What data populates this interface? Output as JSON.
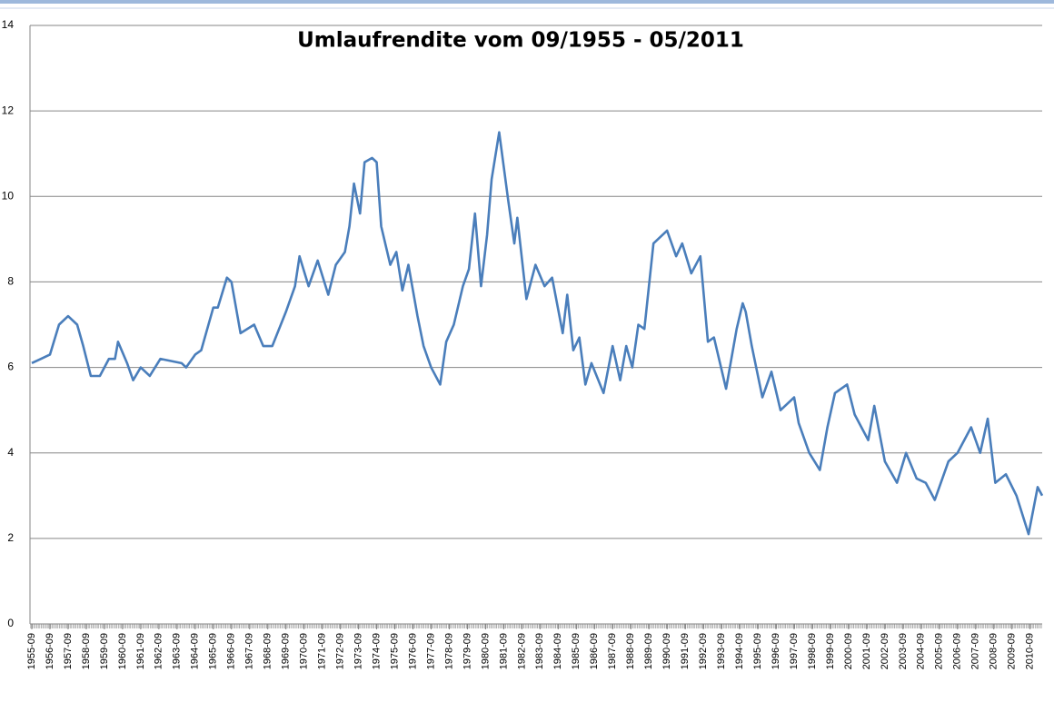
{
  "chart_data": {
    "type": "line",
    "title": "Umlaufrendite vom 09/1955 - 05/2011",
    "color": "#4a7ebb",
    "grid": true,
    "xlim": [
      "1955-09",
      "2011-05"
    ],
    "xticks": [
      "1955-09",
      "1956-09",
      "1957-09",
      "1958-09",
      "1959-09",
      "1960-09",
      "1961-09",
      "1962-09",
      "1963-09",
      "1964-09",
      "1965-09",
      "1966-09",
      "1967-09",
      "1968-09",
      "1969-09",
      "1970-09",
      "1971-09",
      "1972-09",
      "1973-09",
      "1974-09",
      "1975-09",
      "1976-09",
      "1977-09",
      "1978-09",
      "1979-09",
      "1980-09",
      "1981-09",
      "1982-09",
      "1983-09",
      "1984-09",
      "1985-09",
      "1986-09",
      "1987-09",
      "1988-09",
      "1989-09",
      "1990-09",
      "1991-09",
      "1992-09",
      "1993-09",
      "1994-09",
      "1995-09",
      "1996-09",
      "1997-09",
      "1998-09",
      "1999-09",
      "2000-09",
      "2001-09",
      "2002-09",
      "2003-09",
      "2004-09",
      "2005-09",
      "2006-09",
      "2007-09",
      "2008-09",
      "2009-09",
      "2010-09"
    ],
    "ylim": [
      0,
      14
    ],
    "yticks": [
      0,
      2,
      4,
      6,
      8,
      10,
      12,
      14
    ],
    "x": [
      "1955-09",
      "1956-03",
      "1956-09",
      "1957-03",
      "1957-09",
      "1958-03",
      "1958-07",
      "1958-12",
      "1959-06",
      "1959-12",
      "1960-04",
      "1960-06",
      "1960-12",
      "1961-04",
      "1961-09",
      "1962-03",
      "1962-10",
      "1963-12",
      "1964-03",
      "1964-09",
      "1965-01",
      "1965-09",
      "1965-12",
      "1966-06",
      "1966-09",
      "1966-12",
      "1967-03",
      "1967-12",
      "1968-06",
      "1968-12",
      "1969-09",
      "1970-03",
      "1970-06",
      "1970-12",
      "1971-06",
      "1972-01",
      "1972-06",
      "1972-12",
      "1973-03",
      "1973-06",
      "1973-10",
      "1974-01",
      "1974-06",
      "1974-09",
      "1974-12",
      "1975-06",
      "1975-10",
      "1976-02",
      "1976-06",
      "1976-12",
      "1977-04",
      "1977-09",
      "1978-03",
      "1978-07",
      "1978-12",
      "1979-06",
      "1979-10",
      "1980-02",
      "1980-06",
      "1980-10",
      "1981-01",
      "1981-06",
      "1981-12",
      "1982-04",
      "1982-06",
      "1982-12",
      "1983-06",
      "1983-12",
      "1984-05",
      "1984-12",
      "1985-03",
      "1985-07",
      "1985-11",
      "1986-03",
      "1986-07",
      "1987-03",
      "1987-09",
      "1988-02",
      "1988-06",
      "1988-10",
      "1989-02",
      "1989-06",
      "1989-12",
      "1990-09",
      "1991-03",
      "1991-07",
      "1992-01",
      "1992-07",
      "1992-12",
      "1993-04",
      "1993-12",
      "1994-07",
      "1994-11",
      "1995-01",
      "1995-05",
      "1995-12",
      "1996-06",
      "1996-12",
      "1997-09",
      "1997-12",
      "1998-07",
      "1999-02",
      "1999-07",
      "1999-12",
      "2000-08",
      "2001-01",
      "2001-10",
      "2002-02",
      "2002-09",
      "2003-05",
      "2003-11",
      "2004-06",
      "2004-12",
      "2005-06",
      "2006-03",
      "2006-09",
      "2007-06",
      "2007-12",
      "2008-05",
      "2008-10",
      "2009-05",
      "2009-12",
      "2010-08",
      "2011-02",
      "2011-05"
    ],
    "values": [
      6.1,
      6.2,
      6.3,
      7.0,
      7.2,
      7.0,
      6.5,
      5.8,
      5.8,
      6.2,
      6.2,
      6.6,
      6.1,
      5.7,
      6.0,
      5.8,
      6.2,
      6.1,
      6.0,
      6.3,
      6.4,
      7.4,
      7.4,
      8.1,
      8.0,
      7.4,
      6.8,
      7.0,
      6.5,
      6.5,
      7.3,
      7.9,
      8.6,
      7.9,
      8.5,
      7.7,
      8.4,
      8.7,
      9.3,
      10.3,
      9.6,
      10.8,
      10.9,
      10.8,
      9.3,
      8.4,
      8.7,
      7.8,
      8.4,
      7.2,
      6.5,
      6.0,
      5.6,
      6.6,
      7.0,
      7.9,
      8.3,
      9.6,
      7.9,
      9.1,
      10.4,
      11.5,
      9.9,
      8.9,
      9.5,
      7.6,
      8.4,
      7.9,
      8.1,
      6.8,
      7.7,
      6.4,
      6.7,
      5.6,
      6.1,
      5.4,
      6.5,
      5.7,
      6.5,
      6.0,
      7.0,
      6.9,
      8.9,
      9.2,
      8.6,
      8.9,
      8.2,
      8.6,
      6.6,
      6.7,
      5.5,
      6.9,
      7.5,
      7.3,
      6.5,
      5.3,
      5.9,
      5.0,
      5.3,
      4.7,
      4.0,
      3.6,
      4.6,
      5.4,
      5.6,
      4.9,
      4.3,
      5.1,
      3.8,
      3.3,
      4.0,
      3.4,
      3.3,
      2.9,
      3.8,
      4.0,
      4.6,
      4.0,
      4.8,
      3.3,
      3.5,
      3.0,
      2.1,
      3.2,
      3.0
    ]
  }
}
